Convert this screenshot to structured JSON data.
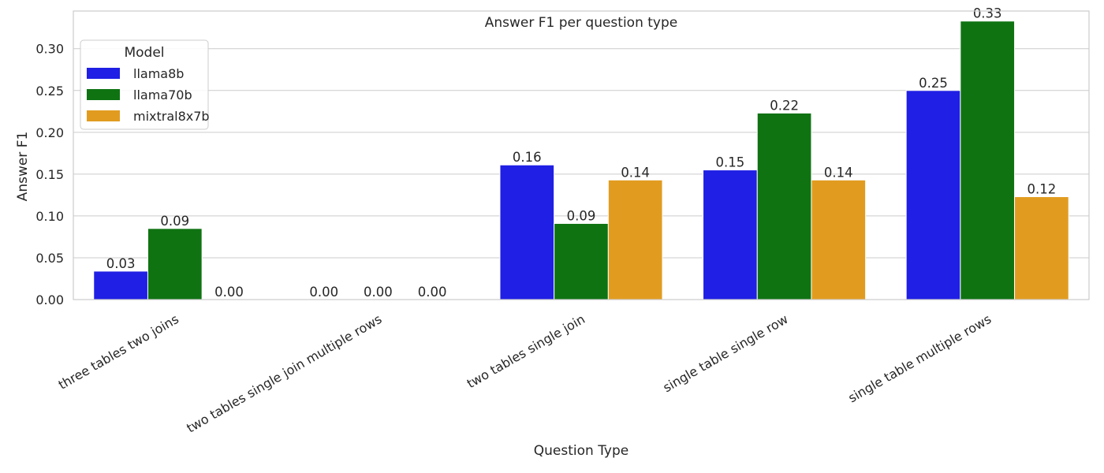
{
  "chart_data": {
    "type": "bar",
    "title": "Answer F1 per question type",
    "xlabel": "Question Type",
    "ylabel": "Answer F1",
    "ylim": [
      0,
      0.345
    ],
    "yticks": [
      "0.00",
      "0.05",
      "0.10",
      "0.15",
      "0.20",
      "0.25",
      "0.30"
    ],
    "grid": true,
    "legend": {
      "title": "Model",
      "placement": "top-left"
    },
    "categories": [
      "three tables two joins",
      "two tables single join multiple rows",
      "two tables single join",
      "single table single row",
      "single table multiple rows"
    ],
    "series": [
      {
        "name": "llama8b",
        "color": "#1f1fe5",
        "values": [
          0.034,
          0.0,
          0.161,
          0.155,
          0.25
        ],
        "labels": [
          "0.03",
          "0.00",
          "0.16",
          "0.15",
          "0.25"
        ]
      },
      {
        "name": "llama70b",
        "color": "#0f7312",
        "values": [
          0.085,
          0.0,
          0.091,
          0.223,
          0.333
        ],
        "labels": [
          "0.09",
          "0.00",
          "0.09",
          "0.22",
          "0.33"
        ]
      },
      {
        "name": "mixtral8x7b",
        "color": "#e19c20",
        "values": [
          0.0,
          0.0,
          0.143,
          0.143,
          0.123
        ],
        "labels": [
          "0.00",
          "0.00",
          "0.14",
          "0.14",
          "0.12"
        ]
      }
    ]
  }
}
